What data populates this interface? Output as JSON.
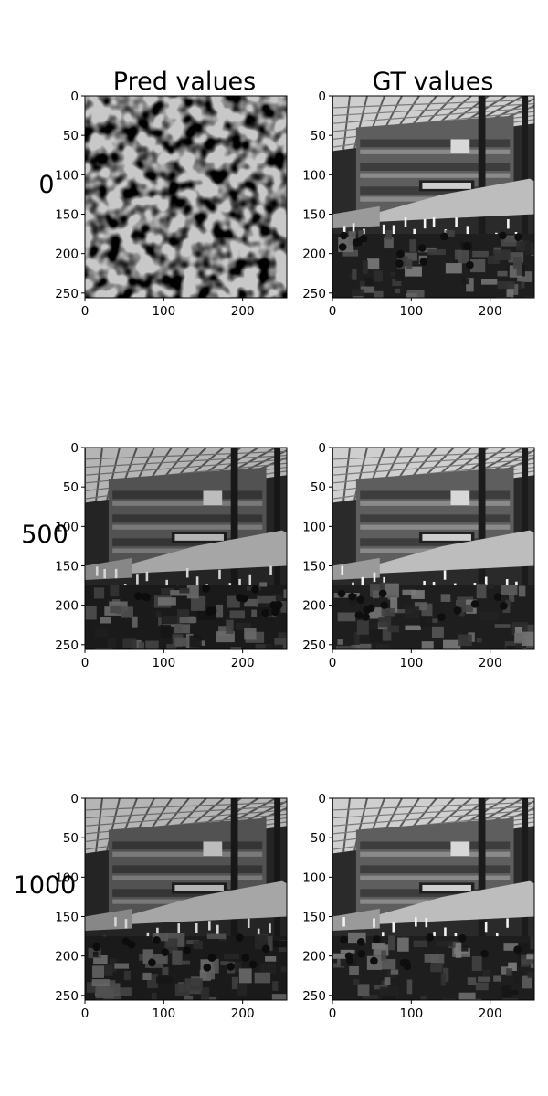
{
  "columns": {
    "left_title": "Pred values",
    "right_title": "GT values"
  },
  "rows": [
    {
      "label": "0",
      "pred": "noise",
      "gt": "market-scene"
    },
    {
      "label": "500",
      "pred": "market-scene",
      "gt": "market-scene"
    },
    {
      "label": "1000",
      "pred": "market-scene",
      "gt": "market-scene"
    }
  ],
  "chart_data": {
    "type": "image-grid",
    "title": "",
    "column_titles": [
      "Pred values",
      "GT values"
    ],
    "row_labels": [
      "0",
      "500",
      "1000"
    ],
    "image_size": [
      256,
      256
    ],
    "xticks": [
      "0",
      "100",
      "200"
    ],
    "yticks": [
      "0",
      "50",
      "100",
      "150",
      "200",
      "250"
    ],
    "xlim": [
      0,
      256
    ],
    "ylim": [
      256,
      0
    ],
    "grid": false
  },
  "colors": {
    "axis": "#000000",
    "background": "#ffffff"
  }
}
